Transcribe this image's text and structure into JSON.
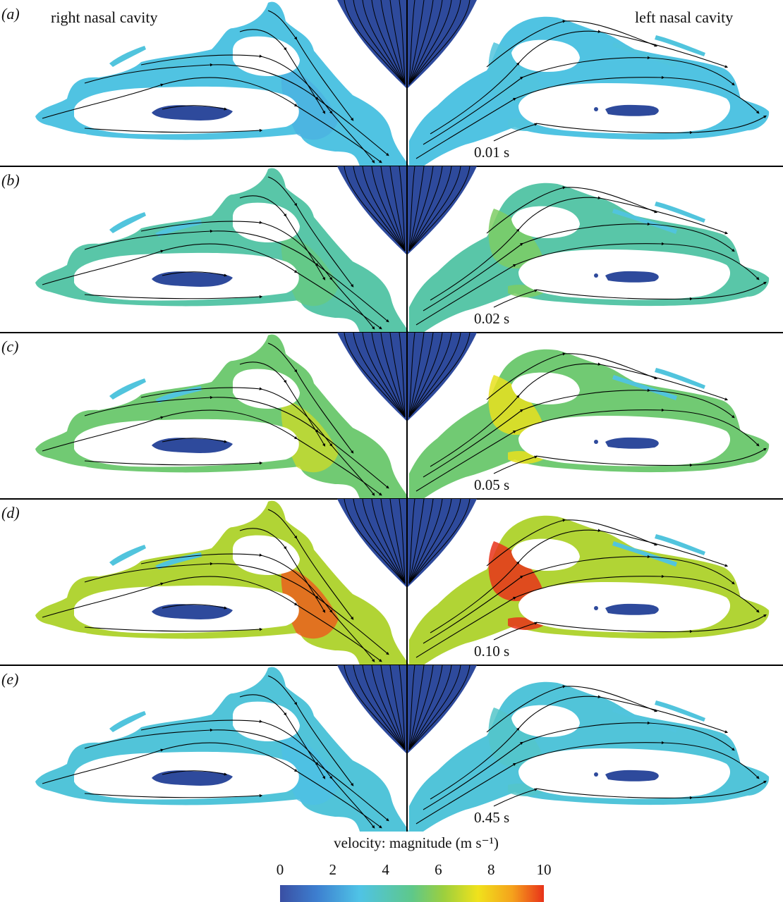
{
  "labels": {
    "right_cavity": "right nasal cavity",
    "left_cavity": "left nasal cavity"
  },
  "panels": [
    {
      "letter": "(a)",
      "time": "0.01 s",
      "level": 0.25
    },
    {
      "letter": "(b)",
      "time": "0.02 s",
      "level": 0.45
    },
    {
      "letter": "(c)",
      "time": "0.05 s",
      "level": 0.65
    },
    {
      "letter": "(d)",
      "time": "0.10 s",
      "level": 0.95
    },
    {
      "letter": "(e)",
      "time": "0.45 s",
      "level": 0.28
    }
  ],
  "colorbar": {
    "title": "velocity: magnitude (m s⁻¹)",
    "ticks": [
      "0",
      "2",
      "4",
      "6",
      "8",
      "10"
    ],
    "min": 0,
    "max": 10,
    "colors": [
      "#3a4fa3",
      "#3d7fd0",
      "#4fc3e6",
      "#5ec88a",
      "#9ccf3e",
      "#f0e21c",
      "#f5a21c",
      "#e8321a"
    ]
  },
  "colors": {
    "septum": "#2e4a9c",
    "low": "#3d7fd0",
    "mid": "#5bbfe4",
    "divider": "#000000"
  }
}
